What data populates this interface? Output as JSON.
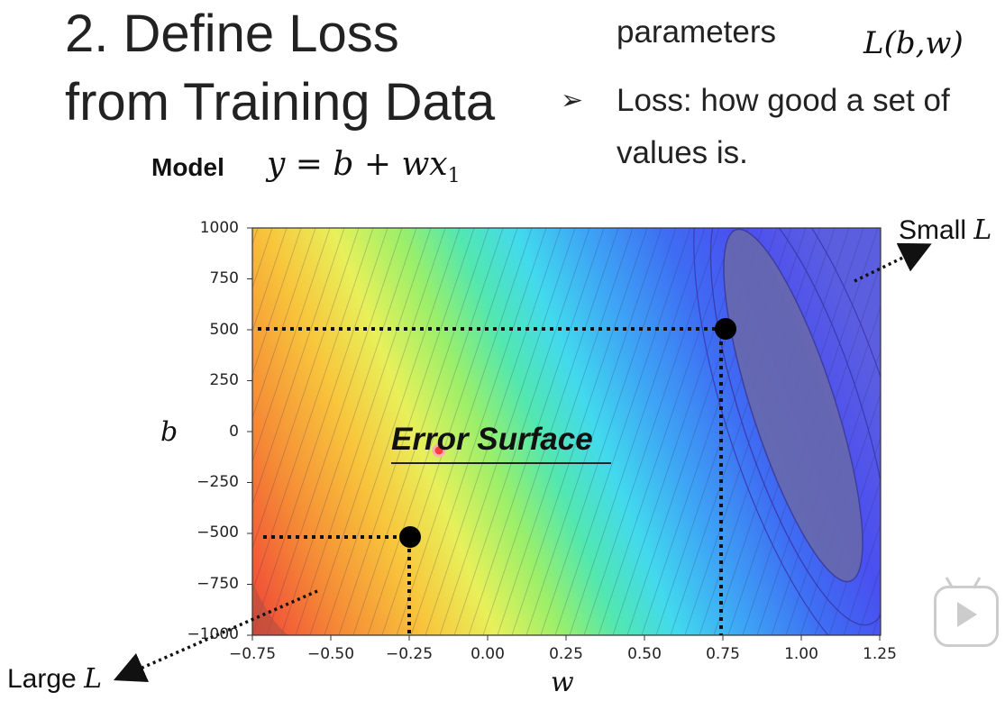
{
  "title": {
    "line1": "2. Define Loss",
    "line2": "from Training Data"
  },
  "bullet": {
    "top_text": "parameters",
    "loss_formula": "L(b,w)",
    "arrow_glyph": "➢",
    "line1": "Loss: how good a set of",
    "line2": "values is."
  },
  "model": {
    "label": "Model",
    "formula_main": "y = b + wx",
    "formula_sub": "1"
  },
  "plot": {
    "y_axis_label": "b",
    "x_axis_label": "w",
    "y_ticks": [
      "1000",
      "750",
      "500",
      "250",
      "0",
      "−250",
      "−500",
      "−750",
      "−1000"
    ],
    "x_ticks": [
      "−0.75",
      "−0.50",
      "−0.25",
      "0.00",
      "0.25",
      "0.50",
      "0.75",
      "1.00",
      "1.25"
    ],
    "surface_label": "Error Surface",
    "colormap_colors": [
      "#ef4438",
      "#f58a36",
      "#f8c63c",
      "#e8f05a",
      "#9bef6a",
      "#52e7b0",
      "#42d9ee",
      "#3ea6f5",
      "#3e6ef3",
      "#4a4ff0",
      "#5c5ee0"
    ],
    "points": [
      {
        "w": 0.75,
        "b": 500
      },
      {
        "w": -0.25,
        "b": -520
      }
    ],
    "marker": {
      "w": -0.15,
      "b": -90
    }
  },
  "annotations": {
    "small_word": "Small",
    "large_word": "Large",
    "symbol": "L"
  }
}
